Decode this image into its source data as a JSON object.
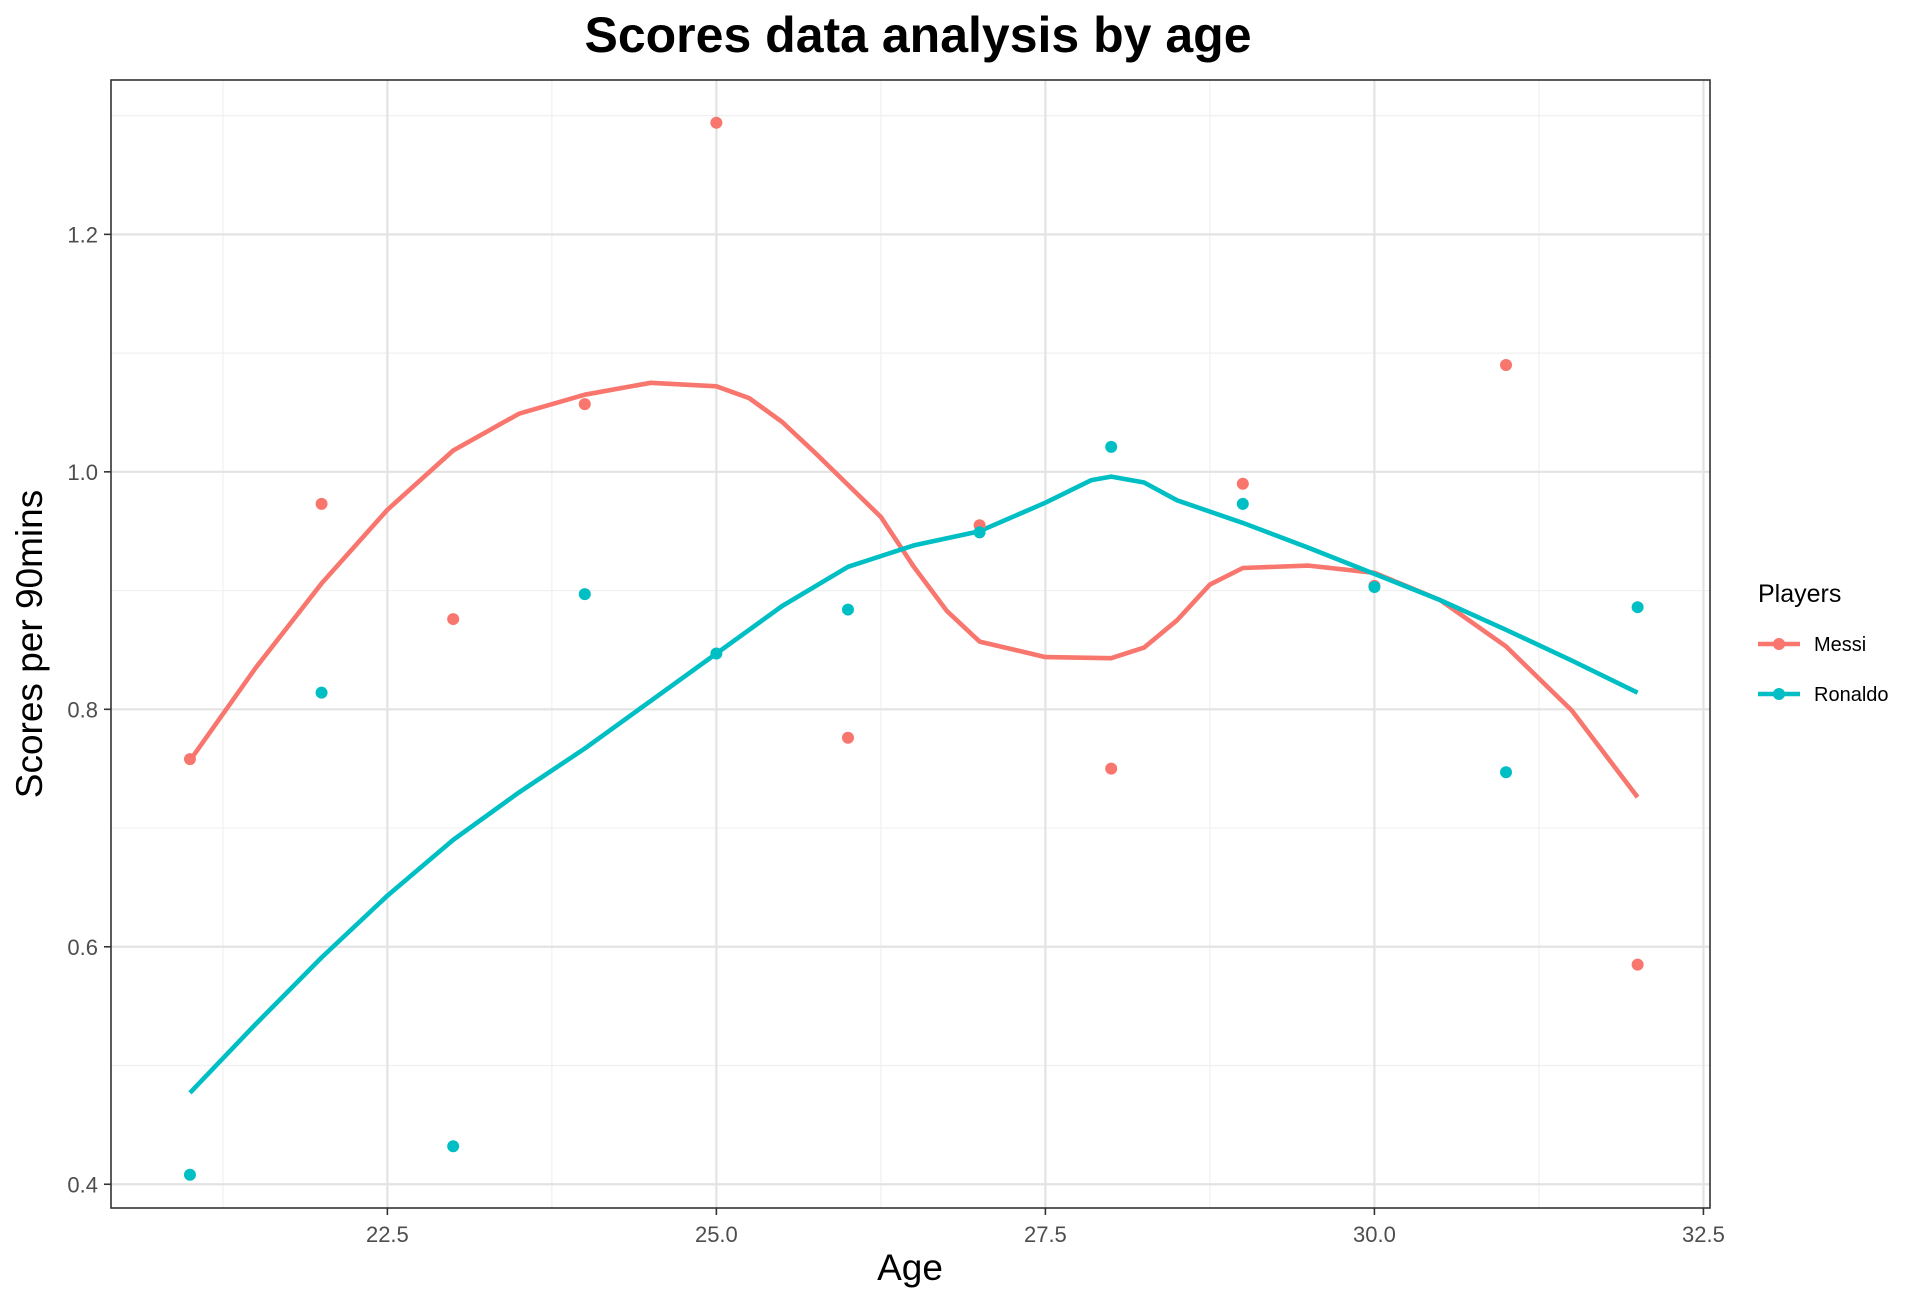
{
  "chart_data": {
    "type": "scatter",
    "title": "Scores data analysis by age",
    "xlabel": "Age",
    "ylabel": "Scores per 90mins",
    "xlim": [
      20.4,
      32.55
    ],
    "ylim": [
      0.38,
      1.33
    ],
    "x_ticks": [
      "22.5",
      "25.0",
      "27.5",
      "30.0",
      "32.5"
    ],
    "x_tick_values": [
      22.5,
      25.0,
      27.5,
      30.0,
      32.5
    ],
    "y_ticks": [
      "0.4",
      "0.6",
      "0.8",
      "1.0",
      "1.2"
    ],
    "y_tick_values": [
      0.4,
      0.6,
      0.8,
      1.0,
      1.2
    ],
    "grid": true,
    "legend": {
      "title": "Players",
      "position": "right"
    },
    "series": [
      {
        "name": "Messi",
        "color": "#F8766D",
        "points": [
          [
            21,
            0.758
          ],
          [
            22,
            0.973
          ],
          [
            23,
            0.876
          ],
          [
            24,
            1.057
          ],
          [
            25,
            1.294
          ],
          [
            26,
            0.776
          ],
          [
            27,
            0.955
          ],
          [
            28,
            0.75
          ],
          [
            29,
            0.99
          ],
          [
            30,
            0.904
          ],
          [
            31,
            1.09
          ],
          [
            32,
            0.585
          ]
        ],
        "smooth": [
          [
            21,
            0.757
          ],
          [
            21.5,
            0.835
          ],
          [
            22,
            0.906
          ],
          [
            22.5,
            0.968
          ],
          [
            23,
            1.018
          ],
          [
            23.5,
            1.049
          ],
          [
            24,
            1.065
          ],
          [
            24.5,
            1.075
          ],
          [
            25,
            1.072
          ],
          [
            25.25,
            1.062
          ],
          [
            25.5,
            1.042
          ],
          [
            25.75,
            1.016
          ],
          [
            26,
            0.989
          ],
          [
            26.25,
            0.962
          ],
          [
            26.5,
            0.92
          ],
          [
            26.75,
            0.883
          ],
          [
            27,
            0.857
          ],
          [
            27.5,
            0.844
          ],
          [
            28,
            0.843
          ],
          [
            28.25,
            0.852
          ],
          [
            28.5,
            0.875
          ],
          [
            28.75,
            0.905
          ],
          [
            29,
            0.919
          ],
          [
            29.5,
            0.921
          ],
          [
            30,
            0.915
          ],
          [
            30.5,
            0.892
          ],
          [
            31,
            0.853
          ],
          [
            31.5,
            0.799
          ],
          [
            32,
            0.726
          ]
        ]
      },
      {
        "name": "Ronaldo",
        "color": "#00BFC4",
        "points": [
          [
            21,
            0.408
          ],
          [
            22,
            0.814
          ],
          [
            23,
            0.432
          ],
          [
            24,
            0.897
          ],
          [
            25,
            0.847
          ],
          [
            26,
            0.884
          ],
          [
            27,
            0.949
          ],
          [
            28,
            1.021
          ],
          [
            29,
            0.973
          ],
          [
            30,
            0.903
          ],
          [
            31,
            0.747
          ],
          [
            32,
            0.886
          ]
        ],
        "smooth": [
          [
            21,
            0.477
          ],
          [
            21.5,
            0.535
          ],
          [
            22,
            0.591
          ],
          [
            22.5,
            0.643
          ],
          [
            23,
            0.69
          ],
          [
            23.5,
            0.73
          ],
          [
            24,
            0.767
          ],
          [
            24.5,
            0.807
          ],
          [
            25,
            0.847
          ],
          [
            25.5,
            0.887
          ],
          [
            26,
            0.92
          ],
          [
            26.5,
            0.938
          ],
          [
            27,
            0.95
          ],
          [
            27.5,
            0.974
          ],
          [
            27.85,
            0.993
          ],
          [
            28,
            0.996
          ],
          [
            28.25,
            0.991
          ],
          [
            28.5,
            0.976
          ],
          [
            29,
            0.957
          ],
          [
            29.5,
            0.936
          ],
          [
            30,
            0.914
          ],
          [
            30.5,
            0.892
          ],
          [
            31,
            0.867
          ],
          [
            31.5,
            0.841
          ],
          [
            32,
            0.814
          ]
        ]
      }
    ]
  }
}
